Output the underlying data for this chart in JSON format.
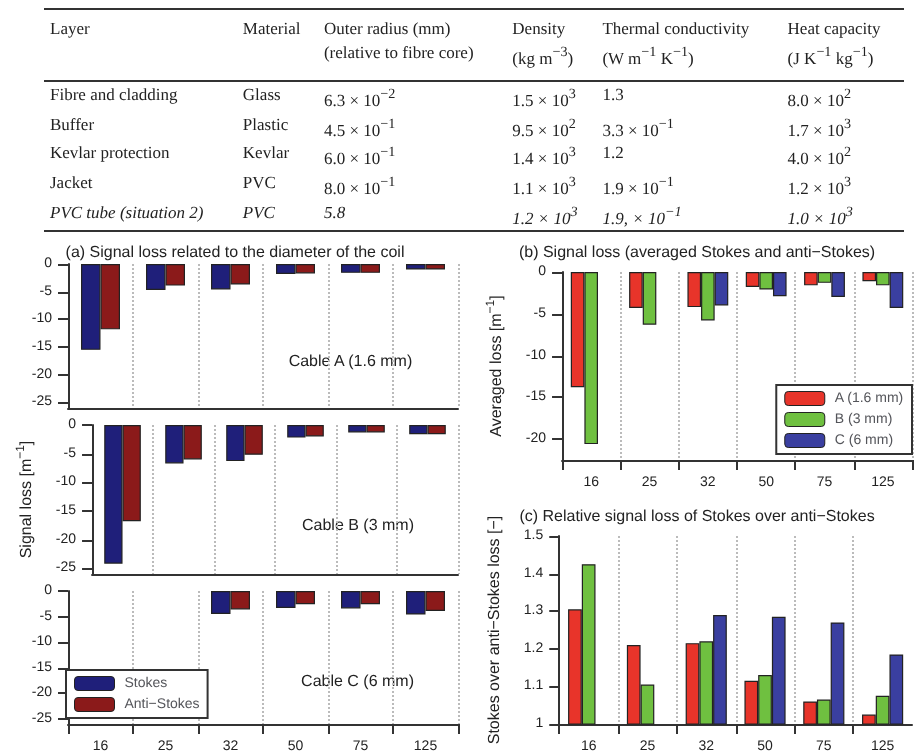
{
  "chart_data": [
    {
      "type": "other",
      "annotations": [
        "Layer",
        "Material",
        "Outer radius (mm)\n(relative to fibre core)",
        "Density\n(kg m$^{−3}$)",
        "Thermal conductivity\n(W m$^{−1}$ K$^{−1}$)",
        "Heat capacity\n(J K$^{−1}$ kg$^{−1}$)",
        "Fibre and cladding",
        "Glass",
        "6.3 × 10$^{−2}$",
        "1.5 × 10$^{3}$",
        "1.3",
        "8.0 × 10$^{2}$",
        "Buffer",
        "Plastic",
        "4.5 × 10$^{−1}$",
        "9.5 × 10$^{2}$",
        "3.3 × 10$^{−1}$",
        "1.7 × 10$^{3}$",
        "Kevlar protection",
        "Kevlar",
        "6.0 × 10$^{−1}$",
        "1.4 × 10$^{3}$",
        "1.2",
        "4.0 × 10$^{2}$",
        "Jacket",
        "PVC",
        "8.0 × 10$^{−1}$",
        "1.1 × 10$^{3}$",
        "1.9 × 10$^{−1}$",
        "1.2 × 10$^{3}$",
        "PVC tube (situation 2)",
        "PVC",
        "5.8",
        "1.2 × 10$^{3}$",
        "1.9, × 10$^{−1}$",
        "1.0 × 10$^{3}$"
      ]
    },
    {
      "type": "bar",
      "title": "(a) Signal loss related to the diameter of the coil",
      "categories": [
        "16",
        "25",
        "32",
        "50",
        "75",
        "125"
      ],
      "ylim": [
        -26,
        0
      ],
      "yticks": [
        0,
        -5,
        -10,
        -15,
        -20,
        -25
      ],
      "grid": "x",
      "tick_labels": "y",
      "annotations": [
        "Cable A (1.6 mm)"
      ],
      "series": [
        {
          "color": "#1f1f7a",
          "values": [
            -15.5,
            -4.7,
            -4.6,
            -1.8,
            -1.6,
            -1.0
          ]
        },
        {
          "color": "#8b1a1a",
          "values": [
            -11.8,
            -3.9,
            -3.7,
            -1.7,
            -1.6,
            -1.0
          ]
        }
      ]
    },
    {
      "type": "bar",
      "ylabel": "Signal loss [m$^{−1}$]",
      "categories": [
        "16",
        "25",
        "32",
        "50",
        "75",
        "125"
      ],
      "ylim": [
        -26,
        0
      ],
      "yticks": [
        0,
        -5,
        -10,
        -15,
        -20,
        -25
      ],
      "grid": "x",
      "tick_labels": "y",
      "annotations": [
        "Cable B (3 mm)"
      ],
      "series": [
        {
          "color": "#1f1f7a",
          "values": [
            -24.2,
            -6.7,
            -6.3,
            -2.2,
            -1.3,
            -1.6
          ]
        },
        {
          "color": "#8b1a1a",
          "values": [
            -16.8,
            -6.0,
            -5.2,
            -2.0,
            -1.3,
            -1.6
          ]
        }
      ]
    },
    {
      "type": "bar",
      "categories": [
        "16",
        "25",
        "32",
        "50",
        "75",
        "125"
      ],
      "ylim": [
        -26,
        0
      ],
      "yticks": [
        0,
        -5,
        -10,
        -15,
        -20,
        -25
      ],
      "grid": "x",
      "legend": "bottom left",
      "annotations": [
        "Cable C (6 mm)"
      ],
      "series": [
        {
          "name": "Stokes",
          "color": "#1f1f7a",
          "values": [
            null,
            null,
            -4.5,
            -3.3,
            -3.4,
            -4.6
          ]
        },
        {
          "name": "Anti−Stokes",
          "color": "#8b1a1a",
          "values": [
            null,
            null,
            -3.6,
            -2.6,
            -2.6,
            -3.9
          ]
        }
      ]
    },
    {
      "type": "bar",
      "title": "(b) Signal loss (averaged Stokes and anti−Stokes)",
      "ylabel": "Averaged loss [m$^{−1}$]",
      "categories": [
        "16",
        "25",
        "32",
        "50",
        "75",
        "125"
      ],
      "ylim": [
        -22.5,
        0
      ],
      "yticks": [
        0,
        -5,
        -10,
        -15,
        -20
      ],
      "grid": "x",
      "legend": "bottom right",
      "series": [
        {
          "name": "A (1.6 mm)",
          "color": "#e8342a",
          "values": [
            -13.8,
            -4.3,
            -4.2,
            -1.8,
            -1.6,
            -1.1
          ]
        },
        {
          "name": "B (3 mm)",
          "color": "#6fc040",
          "values": [
            -20.6,
            -6.3,
            -5.8,
            -2.1,
            -1.3,
            -1.6
          ]
        },
        {
          "name": "C (6 mm)",
          "color": "#3a3fa0",
          "values": [
            null,
            null,
            -4.0,
            -2.9,
            -3.0,
            -4.3
          ]
        }
      ]
    },
    {
      "type": "bar",
      "title": "(c) Relative signal loss of Stokes over anti−Stokes",
      "ylabel": "Stokes over anti−Stokes loss [−]",
      "categories": [
        "16",
        "25",
        "32",
        "50",
        "75",
        "125"
      ],
      "ylim": [
        1,
        1.5
      ],
      "yticks": [
        1,
        1.1,
        1.2,
        1.3,
        1.4,
        1.5
      ],
      "grid": "x",
      "series": [
        {
          "color": "#e8342a",
          "values": [
            1.305,
            1.21,
            1.215,
            1.115,
            1.06,
            1.025
          ]
        },
        {
          "color": "#6fc040",
          "values": [
            1.425,
            1.105,
            1.22,
            1.13,
            1.065,
            1.075
          ]
        },
        {
          "color": "#3a3fa0",
          "values": [
            null,
            null,
            1.29,
            1.285,
            1.27,
            1.185
          ]
        }
      ]
    }
  ]
}
